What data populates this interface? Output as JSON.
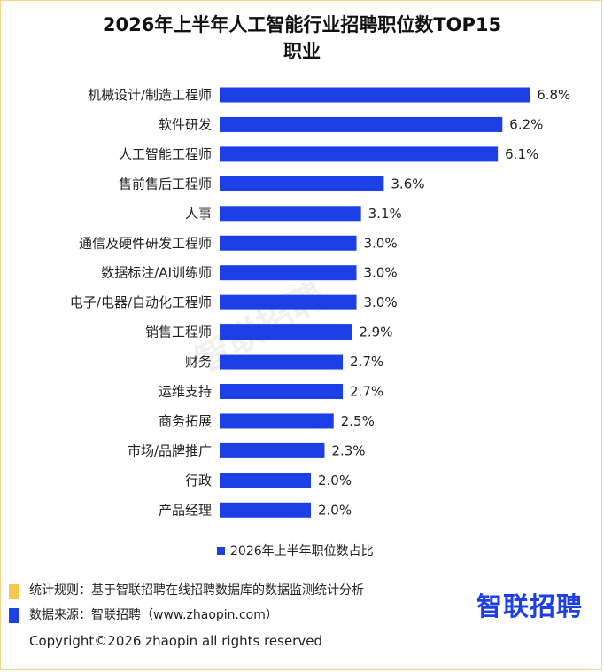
{
  "title_line1": "2026年上半年人工智能行业招聘职位数TOP15",
  "title_line2": "职业",
  "watermark": "智联招聘",
  "legend": {
    "label": "2026年上半年职位数占比",
    "color": "#1d3fe6"
  },
  "notes": {
    "rule": "统计规则：基于智联招聘在线招聘数据库的数据监测统计分析",
    "source": "数据来源：智联招聘（www.zhaopin.com）",
    "rule_marker_color": "#f5c84a",
    "source_marker_color": "#1d3fe6"
  },
  "brand_logo": "智联招聘",
  "copyright": "Copyright©2026 zhaopin all rights reserved",
  "chart_data": {
    "type": "bar",
    "orientation": "horizontal",
    "categories": [
      "机械设计/制造工程师",
      "软件研发",
      "人工智能工程师",
      "售前售后工程师",
      "人事",
      "通信及硬件研发工程师",
      "数据标注/AI训练师",
      "电子/电器/自动化工程师",
      "销售工程师",
      "财务",
      "运维支持",
      "商务拓展",
      "市场/品牌推广",
      "行政",
      "产品经理"
    ],
    "values": [
      6.8,
      6.2,
      6.1,
      3.6,
      3.1,
      3.0,
      3.0,
      3.0,
      2.9,
      2.7,
      2.7,
      2.5,
      2.3,
      2.0,
      2.0
    ],
    "value_labels": [
      "6.8%",
      "6.2%",
      "6.1%",
      "3.6%",
      "3.1%",
      "3.0%",
      "3.0%",
      "3.0%",
      "2.9%",
      "2.7%",
      "2.7%",
      "2.5%",
      "2.3%",
      "2.0%",
      "2.0%"
    ],
    "series": [
      {
        "name": "2026年上半年职位数占比"
      }
    ],
    "bar_color": "#1d3fe6",
    "xlim": [
      0,
      7
    ],
    "grid": false,
    "legend_position": "bottom"
  }
}
